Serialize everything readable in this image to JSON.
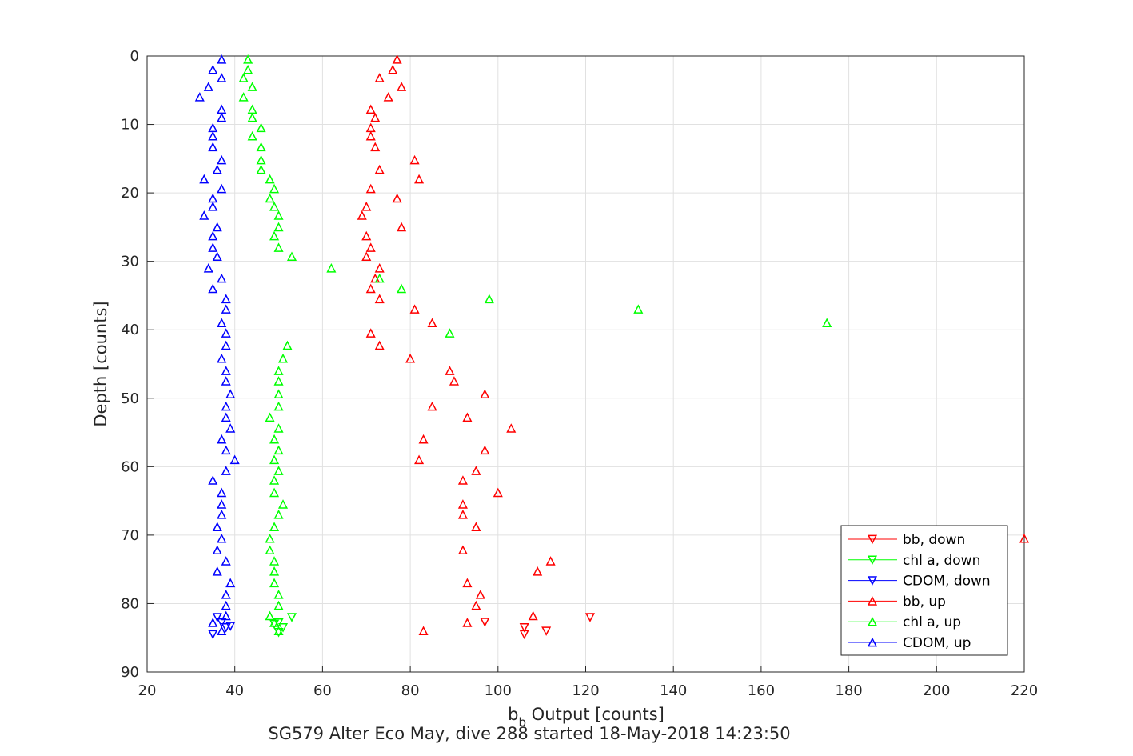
{
  "chart_data": {
    "type": "scatter",
    "xlabel": "b",
    "xlabel_sub": "b",
    "xlabel_rest": " Output [counts]",
    "ylabel": "Depth [counts]",
    "subtitle": "SG579 Alter Eco May, dive 288 started 18-May-2018 14:23:50",
    "xlim": [
      20,
      220
    ],
    "ylim": [
      0,
      90
    ],
    "y_reversed": true,
    "grid": true,
    "legend_position": "bottom-right",
    "xticks": [
      "20",
      "40",
      "60",
      "80",
      "100",
      "120",
      "140",
      "160",
      "180",
      "200",
      "220"
    ],
    "yticks": [
      "0",
      "10",
      "20",
      "30",
      "40",
      "50",
      "60",
      "70",
      "80",
      "90"
    ],
    "series": [
      {
        "name": "bb, down",
        "color": "#ff0000",
        "marker": "triangle-down",
        "points": [
          [
            106,
            83.5
          ],
          [
            97,
            82.7
          ],
          [
            111,
            84
          ],
          [
            106,
            84.5
          ],
          [
            121,
            82
          ]
        ]
      },
      {
        "name": "chl a, down",
        "color": "#00ff00",
        "marker": "triangle-down",
        "points": [
          [
            53,
            82
          ],
          [
            50,
            82.8
          ],
          [
            51,
            83.5
          ],
          [
            50,
            84.2
          ],
          [
            49,
            83
          ]
        ]
      },
      {
        "name": "CDOM, down",
        "color": "#0000ff",
        "marker": "triangle-down",
        "points": [
          [
            36,
            82
          ],
          [
            37,
            82.8
          ],
          [
            38,
            83.5
          ],
          [
            35,
            84.5
          ],
          [
            39,
            83.3
          ]
        ]
      },
      {
        "name": "bb, up",
        "color": "#ff0000",
        "marker": "triangle-up",
        "points": [
          [
            77,
            0.5
          ],
          [
            76,
            2
          ],
          [
            73,
            3.2
          ],
          [
            78,
            4.5
          ],
          [
            75,
            6
          ],
          [
            71,
            7.8
          ],
          [
            72,
            9
          ],
          [
            71,
            10.5
          ],
          [
            71,
            11.7
          ],
          [
            72,
            13.3
          ],
          [
            81,
            15.2
          ],
          [
            73,
            16.6
          ],
          [
            82,
            18
          ],
          [
            71,
            19.4
          ],
          [
            77,
            20.8
          ],
          [
            70,
            22
          ],
          [
            69,
            23.3
          ],
          [
            78,
            25
          ],
          [
            70,
            26.3
          ],
          [
            71,
            28
          ],
          [
            70,
            29.3
          ],
          [
            73,
            31
          ],
          [
            72,
            32.5
          ],
          [
            71,
            34
          ],
          [
            73,
            35.5
          ],
          [
            81,
            37
          ],
          [
            85,
            39
          ],
          [
            71,
            40.5
          ],
          [
            73,
            42.3
          ],
          [
            80,
            44.2
          ],
          [
            89,
            46
          ],
          [
            90,
            47.5
          ],
          [
            97,
            49.4
          ],
          [
            85,
            51.2
          ],
          [
            93,
            52.8
          ],
          [
            103,
            54.4
          ],
          [
            83,
            56
          ],
          [
            97,
            57.6
          ],
          [
            82,
            59
          ],
          [
            95,
            60.6
          ],
          [
            92,
            62
          ],
          [
            100,
            63.8
          ],
          [
            92,
            65.5
          ],
          [
            92,
            67
          ],
          [
            95,
            68.8
          ],
          [
            220,
            70.5
          ],
          [
            92,
            72.2
          ],
          [
            112,
            73.8
          ],
          [
            109,
            75.3
          ],
          [
            93,
            77
          ],
          [
            96,
            78.7
          ],
          [
            95,
            80.3
          ],
          [
            108,
            81.8
          ],
          [
            93,
            82.8
          ],
          [
            83,
            84
          ]
        ]
      },
      {
        "name": "chl a, up",
        "color": "#00ff00",
        "marker": "triangle-up",
        "points": [
          [
            43,
            0.5
          ],
          [
            43,
            2
          ],
          [
            42,
            3.2
          ],
          [
            44,
            4.5
          ],
          [
            42,
            6
          ],
          [
            44,
            7.8
          ],
          [
            44,
            9
          ],
          [
            46,
            10.5
          ],
          [
            44,
            11.7
          ],
          [
            46,
            13.3
          ],
          [
            46,
            15.2
          ],
          [
            46,
            16.6
          ],
          [
            48,
            18
          ],
          [
            49,
            19.4
          ],
          [
            48,
            20.8
          ],
          [
            49,
            22
          ],
          [
            50,
            23.3
          ],
          [
            50,
            25
          ],
          [
            49,
            26.3
          ],
          [
            50,
            28
          ],
          [
            53,
            29.3
          ],
          [
            62,
            31
          ],
          [
            73,
            32.5
          ],
          [
            78,
            34
          ],
          [
            98,
            35.5
          ],
          [
            132,
            37
          ],
          [
            175,
            39
          ],
          [
            89,
            40.5
          ],
          [
            52,
            42.3
          ],
          [
            51,
            44.2
          ],
          [
            50,
            46
          ],
          [
            50,
            47.5
          ],
          [
            50,
            49.4
          ],
          [
            50,
            51.2
          ],
          [
            48,
            52.8
          ],
          [
            50,
            54.4
          ],
          [
            49,
            56
          ],
          [
            50,
            57.6
          ],
          [
            49,
            59
          ],
          [
            50,
            60.6
          ],
          [
            49,
            62
          ],
          [
            49,
            63.8
          ],
          [
            51,
            65.5
          ],
          [
            50,
            67
          ],
          [
            49,
            68.8
          ],
          [
            48,
            70.5
          ],
          [
            48,
            72.2
          ],
          [
            49,
            73.8
          ],
          [
            49,
            75.3
          ],
          [
            49,
            77
          ],
          [
            50,
            78.7
          ],
          [
            50,
            80.3
          ],
          [
            48,
            81.8
          ],
          [
            49,
            82.8
          ],
          [
            50,
            84
          ]
        ]
      },
      {
        "name": "CDOM, up",
        "color": "#0000ff",
        "marker": "triangle-up",
        "points": [
          [
            37,
            0.5
          ],
          [
            35,
            2
          ],
          [
            37,
            3.2
          ],
          [
            34,
            4.5
          ],
          [
            32,
            6
          ],
          [
            37,
            7.8
          ],
          [
            37,
            9
          ],
          [
            35,
            10.5
          ],
          [
            35,
            11.7
          ],
          [
            35,
            13.3
          ],
          [
            37,
            15.2
          ],
          [
            36,
            16.6
          ],
          [
            33,
            18
          ],
          [
            37,
            19.4
          ],
          [
            35,
            20.8
          ],
          [
            35,
            22
          ],
          [
            33,
            23.3
          ],
          [
            36,
            25
          ],
          [
            35,
            26.3
          ],
          [
            35,
            28
          ],
          [
            36,
            29.3
          ],
          [
            34,
            31
          ],
          [
            37,
            32.5
          ],
          [
            35,
            34
          ],
          [
            38,
            35.5
          ],
          [
            38,
            37
          ],
          [
            37,
            39
          ],
          [
            38,
            40.5
          ],
          [
            38,
            42.3
          ],
          [
            37,
            44.2
          ],
          [
            38,
            46
          ],
          [
            38,
            47.5
          ],
          [
            39,
            49.4
          ],
          [
            38,
            51.2
          ],
          [
            38,
            52.8
          ],
          [
            39,
            54.4
          ],
          [
            37,
            56
          ],
          [
            38,
            57.6
          ],
          [
            40,
            59
          ],
          [
            38,
            60.6
          ],
          [
            35,
            62
          ],
          [
            37,
            63.8
          ],
          [
            37,
            65.5
          ],
          [
            37,
            67
          ],
          [
            36,
            68.8
          ],
          [
            37,
            70.5
          ],
          [
            36,
            72.2
          ],
          [
            38,
            73.8
          ],
          [
            36,
            75.3
          ],
          [
            39,
            77
          ],
          [
            38,
            78.7
          ],
          [
            38,
            80.3
          ],
          [
            38,
            81.8
          ],
          [
            35,
            82.8
          ],
          [
            37,
            84
          ]
        ]
      }
    ]
  }
}
